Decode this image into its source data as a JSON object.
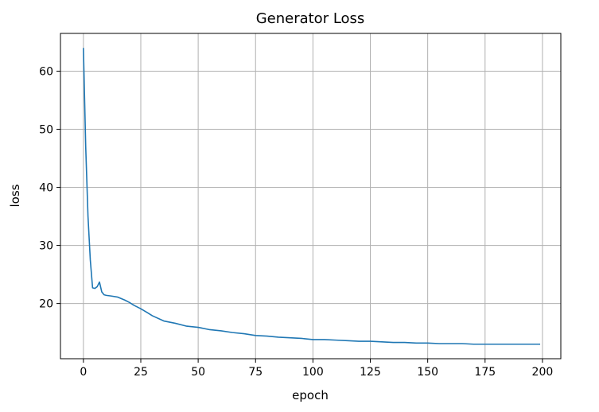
{
  "chart_data": {
    "type": "line",
    "title": "Generator Loss",
    "xlabel": "epoch",
    "ylabel": "loss",
    "xlim": [
      -10,
      208
    ],
    "ylim": [
      10.5,
      66.5
    ],
    "xticks": [
      0,
      25,
      50,
      75,
      100,
      125,
      150,
      175,
      200
    ],
    "xtick_labels": [
      "0",
      "25",
      "50",
      "75",
      "100",
      "125",
      "150",
      "175",
      "200"
    ],
    "yticks": [
      20,
      30,
      40,
      50,
      60
    ],
    "ytick_labels": [
      "20",
      "30",
      "40",
      "50",
      "60"
    ],
    "grid": true,
    "series": [
      {
        "color": "#1f77b4",
        "x": [
          0,
          1,
          2,
          3,
          4,
          5,
          6,
          7,
          8,
          9,
          10,
          12,
          15,
          18,
          20,
          22,
          25,
          28,
          30,
          35,
          40,
          45,
          50,
          55,
          60,
          65,
          70,
          75,
          80,
          85,
          90,
          95,
          100,
          105,
          110,
          115,
          120,
          125,
          130,
          135,
          140,
          145,
          150,
          155,
          160,
          165,
          170,
          175,
          180,
          185,
          190,
          195,
          199
        ],
        "y": [
          64.0,
          47.0,
          35.0,
          27.5,
          22.7,
          22.6,
          22.9,
          23.7,
          22.0,
          21.5,
          21.4,
          21.3,
          21.1,
          20.6,
          20.2,
          19.7,
          19.1,
          18.4,
          17.9,
          17.0,
          16.6,
          16.1,
          15.9,
          15.5,
          15.3,
          15.0,
          14.8,
          14.5,
          14.4,
          14.2,
          14.1,
          14.0,
          13.8,
          13.8,
          13.7,
          13.6,
          13.5,
          13.5,
          13.4,
          13.3,
          13.3,
          13.2,
          13.2,
          13.1,
          13.1,
          13.1,
          13.0,
          13.0,
          13.0,
          13.0,
          13.0,
          13.0,
          13.0
        ]
      }
    ]
  }
}
